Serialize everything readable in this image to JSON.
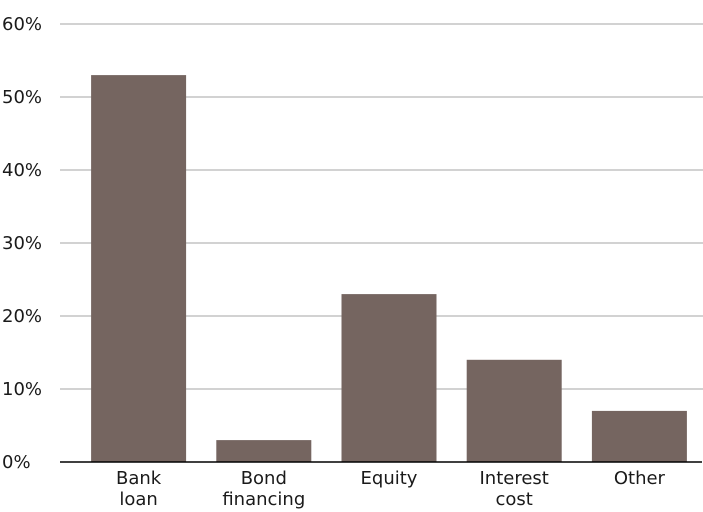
{
  "chart_data": {
    "type": "bar",
    "title": "",
    "xlabel": "",
    "ylabel": "",
    "categories": [
      [
        "Bank",
        "loan"
      ],
      [
        "Bond",
        "financing"
      ],
      [
        "Equity"
      ],
      [
        "Interest",
        "cost"
      ],
      [
        "Other"
      ]
    ],
    "values": [
      53,
      3,
      23,
      14,
      7
    ],
    "ylim": [
      0,
      60
    ],
    "y_ticks": [
      "0%",
      "10%",
      "20%",
      "30%",
      "40%",
      "50%",
      "60%"
    ],
    "grid": true,
    "bar_color": "#756560",
    "grid_color": "#a6a6a6"
  }
}
